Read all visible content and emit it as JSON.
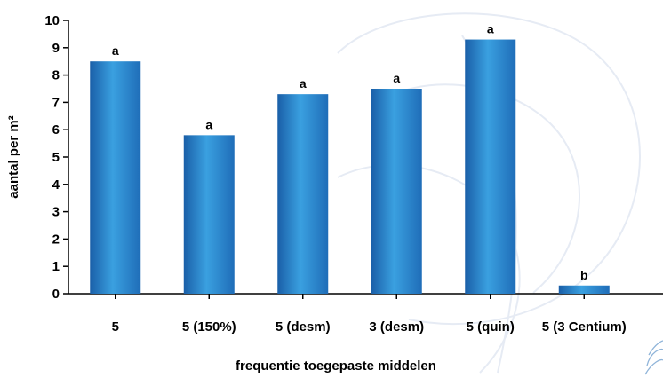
{
  "chart_data": {
    "type": "bar",
    "title": "",
    "xlabel": "frequentie toegepaste middelen",
    "ylabel": "aantal per m²",
    "ylim": [
      0,
      10
    ],
    "yticks": [
      "0",
      "1",
      "2",
      "3",
      "4",
      "5",
      "6",
      "7",
      "8",
      "9",
      "10"
    ],
    "categories": [
      "5",
      "5 (150%)",
      "5 (desm)",
      "3 (desm)",
      "5 (quin)",
      "5 (3 Centium)"
    ],
    "values": [
      8.5,
      5.8,
      7.3,
      7.5,
      9.3,
      0.3
    ],
    "significance_labels": [
      "a",
      "a",
      "a",
      "a",
      "a",
      "b"
    ],
    "grid": false,
    "colors": {
      "bar_dark": "#1a5fa8",
      "bar_mid": "#3aa0e0",
      "bar_light": "#2f8fd6",
      "watermark": "#e6ebf4"
    }
  }
}
